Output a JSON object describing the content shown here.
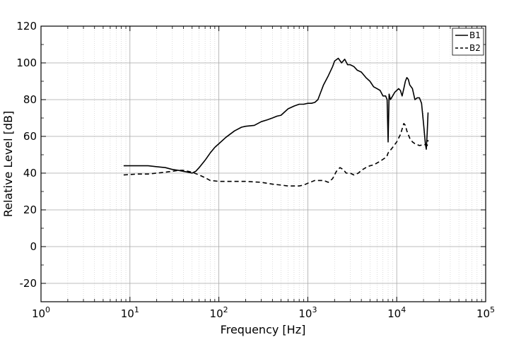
{
  "chart_data": {
    "type": "line",
    "title": "",
    "xlabel": "Frequency [Hz]",
    "ylabel": "Relative Level [dB]",
    "xscale": "log",
    "xlim": [
      1,
      100000
    ],
    "ylim": [
      -30,
      120
    ],
    "grid": true,
    "legend_position": "top-right",
    "x_ticks": [
      {
        "value": 1,
        "base": "10",
        "exp": "0"
      },
      {
        "value": 10,
        "base": "10",
        "exp": "1"
      },
      {
        "value": 100,
        "base": "10",
        "exp": "2"
      },
      {
        "value": 1000,
        "base": "10",
        "exp": "3"
      },
      {
        "value": 10000,
        "base": "10",
        "exp": "4"
      },
      {
        "value": 100000,
        "base": "10",
        "exp": "5"
      }
    ],
    "y_ticks": [
      {
        "value": 120,
        "label": "120"
      },
      {
        "value": 100,
        "label": "100"
      },
      {
        "value": 80,
        "label": "80"
      },
      {
        "value": 60,
        "label": "60"
      },
      {
        "value": 40,
        "label": "40"
      },
      {
        "value": 20,
        "label": "20"
      },
      {
        "value": 0,
        "label": "0"
      },
      {
        "value": -20,
        "label": "-20"
      }
    ],
    "series": [
      {
        "name": "B1",
        "line_style": "solid",
        "color": "#000000",
        "x": [
          8.5,
          12,
          16,
          20,
          25,
          30,
          35,
          40,
          45,
          50,
          55,
          60,
          70,
          80,
          90,
          100,
          120,
          150,
          180,
          200,
          250,
          300,
          350,
          400,
          450,
          500,
          600,
          700,
          800,
          900,
          1000,
          1100,
          1200,
          1300,
          1500,
          1700,
          1900,
          2000,
          2200,
          2400,
          2600,
          2800,
          3000,
          3300,
          3600,
          4000,
          4500,
          5000,
          5500,
          6000,
          6500,
          7000,
          7500,
          7800,
          8000,
          8100,
          8200,
          8500,
          9000,
          9500,
          10000,
          10500,
          11000,
          11500,
          12000,
          12500,
          13000,
          13500,
          14000,
          15000,
          16000,
          17000,
          18000,
          19000,
          20000,
          21000,
          21500,
          22000,
          22500
        ],
        "y": [
          44,
          44,
          44,
          43.5,
          43,
          42,
          41.5,
          41,
          40.5,
          40,
          41,
          43,
          47,
          51,
          54,
          56,
          59.5,
          63,
          65,
          65.5,
          66,
          68,
          69,
          70,
          71,
          71.5,
          75,
          76.5,
          77.5,
          77.5,
          78,
          78,
          78.5,
          80,
          88,
          93,
          98,
          101,
          102.5,
          100,
          102,
          99,
          99,
          98,
          96,
          95,
          92,
          90,
          87,
          86,
          85,
          82,
          82,
          80,
          57,
          70,
          83,
          80,
          82,
          84,
          85,
          86,
          85,
          82,
          86,
          90,
          92,
          91,
          88,
          86,
          80,
          81,
          81,
          78,
          67,
          56,
          53,
          62,
          73
        ]
      },
      {
        "name": "B2",
        "line_style": "dashed",
        "color": "#000000",
        "x": [
          8.5,
          12,
          16,
          20,
          25,
          30,
          35,
          40,
          45,
          50,
          60,
          70,
          80,
          100,
          150,
          200,
          300,
          400,
          500,
          600,
          700,
          800,
          900,
          1000,
          1200,
          1500,
          1700,
          1900,
          2100,
          2300,
          2500,
          2700,
          3000,
          3300,
          3700,
          4000,
          4500,
          5000,
          5500,
          6000,
          6500,
          7000,
          7500,
          7800,
          8000,
          8200,
          8500,
          9000,
          10000,
          11000,
          11500,
          12000,
          12500,
          13000,
          14000,
          15000,
          16000,
          18000,
          20000,
          21000,
          22000,
          22500
        ],
        "y": [
          39,
          39.5,
          39.5,
          40,
          40.5,
          41,
          41.5,
          41.5,
          41,
          40.5,
          39,
          37.5,
          36,
          35.5,
          35.5,
          35.5,
          35,
          34,
          33.5,
          33,
          33,
          33,
          33.5,
          34.5,
          36,
          36,
          35,
          37,
          41,
          43,
          42,
          40,
          40,
          39,
          40,
          41.5,
          43,
          44,
          44.5,
          45.5,
          46.5,
          47.5,
          48.5,
          49.5,
          51,
          51.5,
          52.5,
          54,
          57,
          61,
          64,
          67,
          66,
          63,
          59,
          57,
          56,
          55,
          55.5,
          55.5,
          55,
          58
        ]
      }
    ]
  }
}
